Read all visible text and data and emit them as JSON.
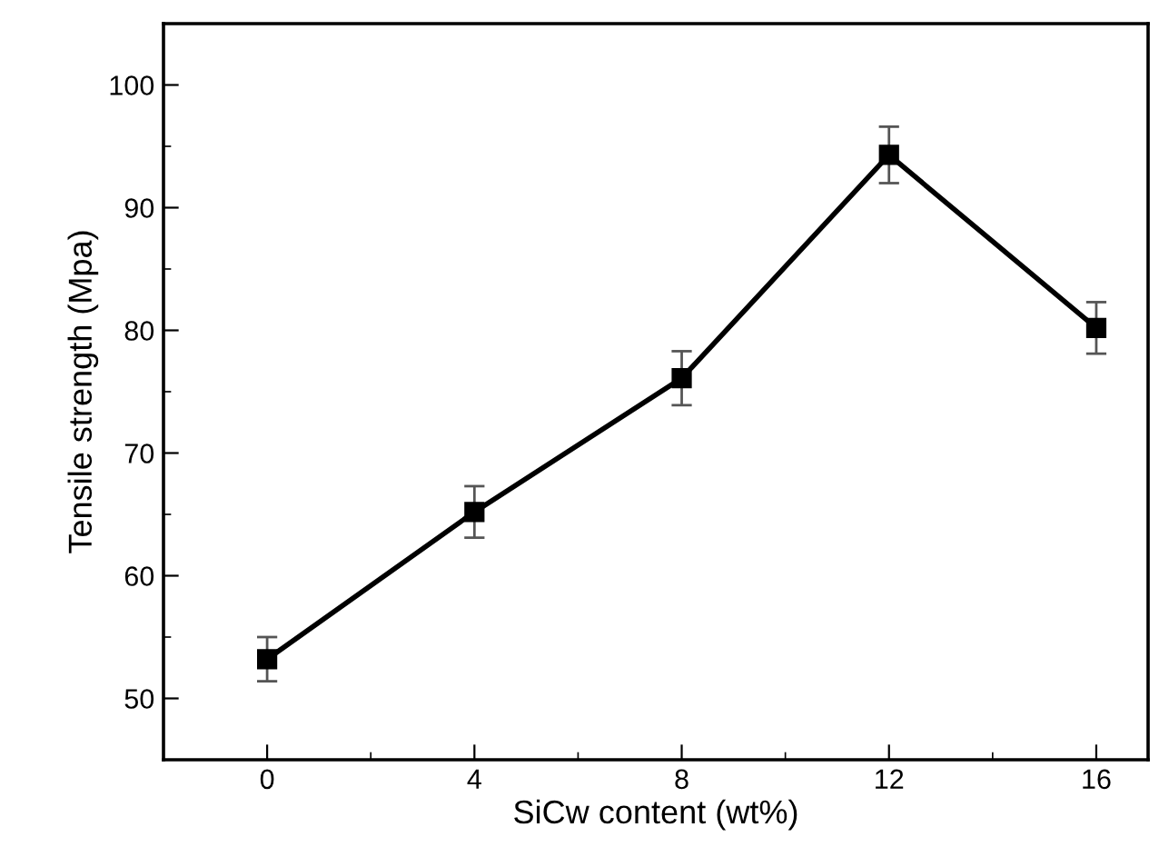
{
  "chart_data": {
    "type": "line",
    "xlabel": "SiCw content (wt%)",
    "ylabel": "Tensile strength (Mpa)",
    "x": [
      0,
      4,
      8,
      12,
      16
    ],
    "series": [
      {
        "color": "#000000",
        "values": [
          53.2,
          65.2,
          76.1,
          94.3,
          80.2
        ],
        "errors": [
          1.8,
          2.1,
          2.2,
          2.3,
          2.1
        ]
      }
    ],
    "xlim": [
      -2,
      17
    ],
    "xticks": [
      0,
      4,
      8,
      12,
      16
    ],
    "ylim": [
      45,
      105
    ],
    "yticks": [
      50,
      60,
      70,
      80,
      90,
      100
    ],
    "marker": "square",
    "line_style": "solid",
    "grid": false,
    "legend": false
  }
}
